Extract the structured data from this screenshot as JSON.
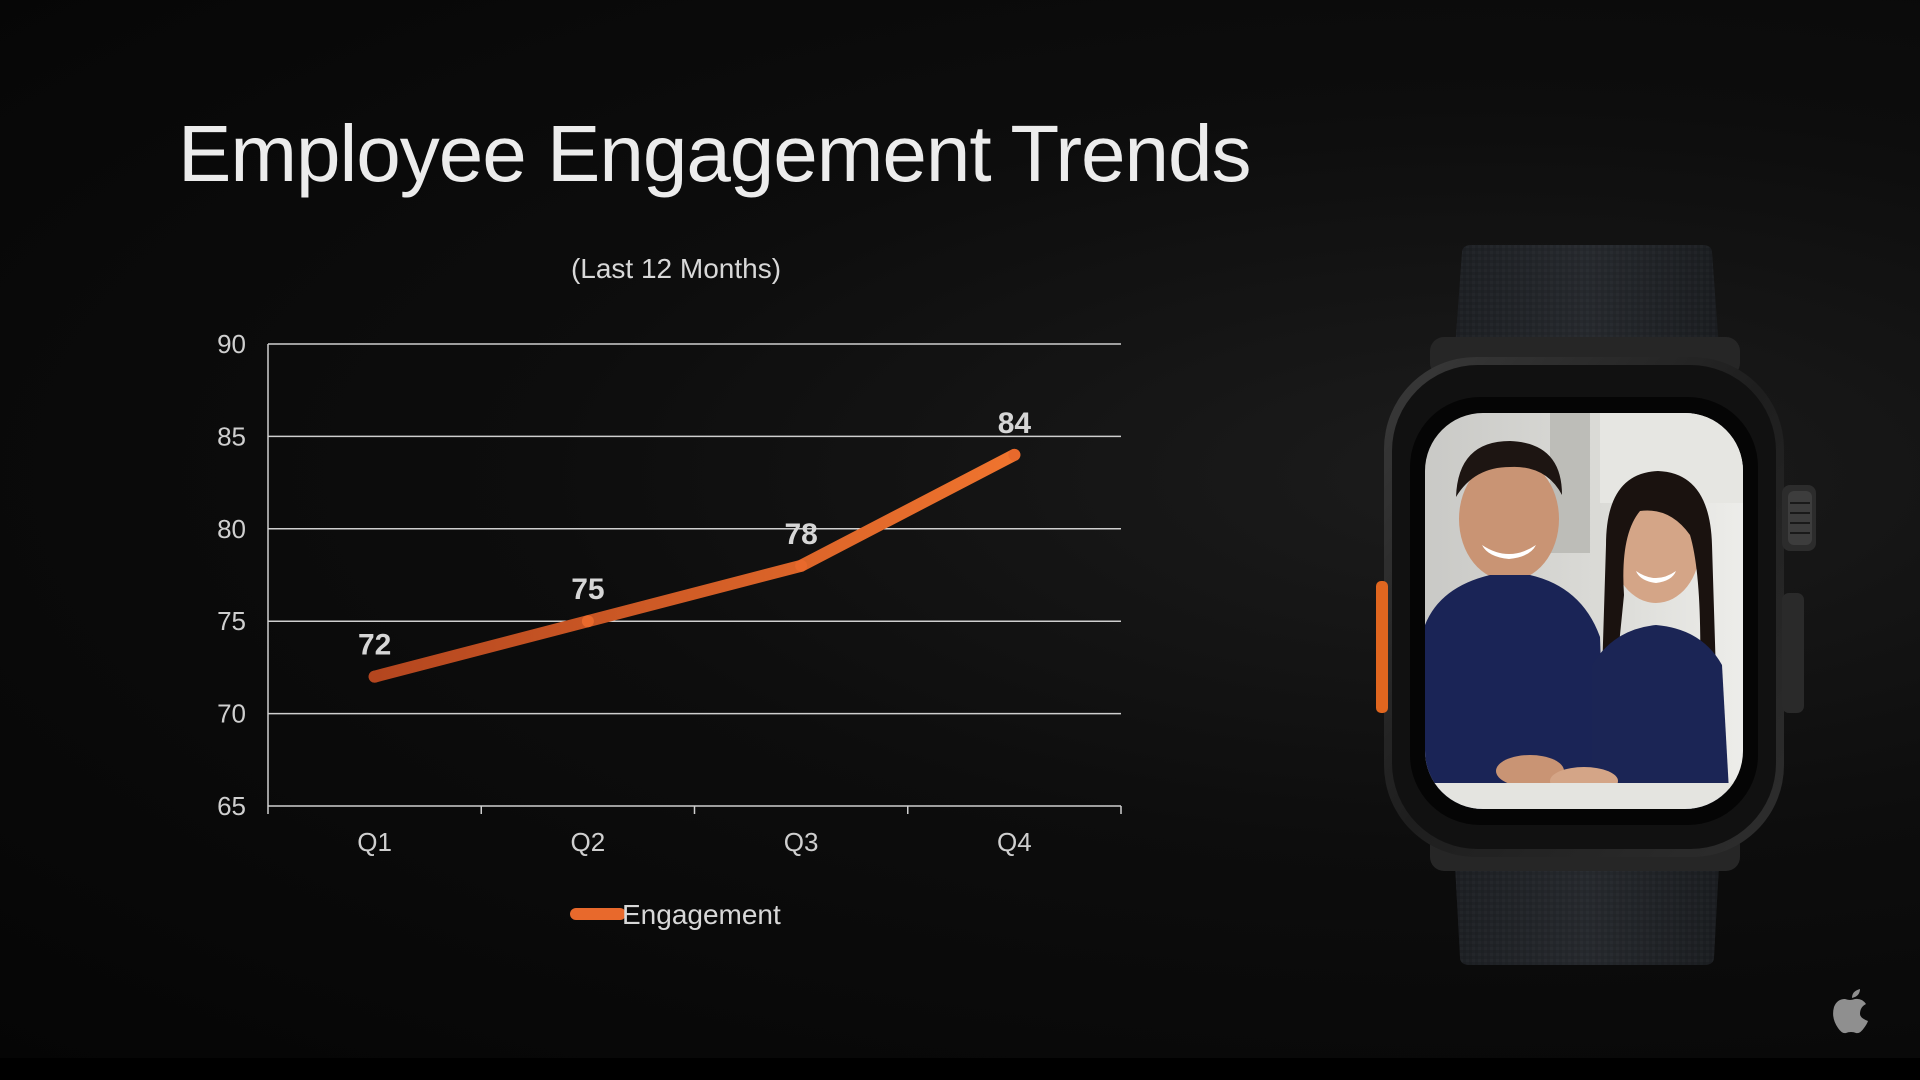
{
  "slide": {
    "title": "Employee Engagement Trends"
  },
  "chart_data": {
    "type": "line",
    "title": "Employee Engagement Trends",
    "subtitle": "(Last 12 Months)",
    "categories": [
      "Q1",
      "Q2",
      "Q3",
      "Q4"
    ],
    "series": [
      {
        "name": "Engagement",
        "values": [
          72,
          75,
          78,
          84
        ],
        "color": "#e8692c"
      }
    ],
    "data_labels": [
      "72",
      "75",
      "78",
      "84"
    ],
    "yticks": [
      "65",
      "70",
      "75",
      "80",
      "85",
      "90"
    ],
    "ylim": [
      65,
      90
    ],
    "xlabel": "",
    "ylabel": "",
    "grid": true,
    "legend": "bottom-center"
  },
  "images": {
    "watch": "smartwatch-photo-two-people",
    "logo": "apple-logo-icon"
  },
  "colors": {
    "background": "#0a0a0a",
    "accent": "#e8692c",
    "gridline": "#cfcfcf"
  }
}
